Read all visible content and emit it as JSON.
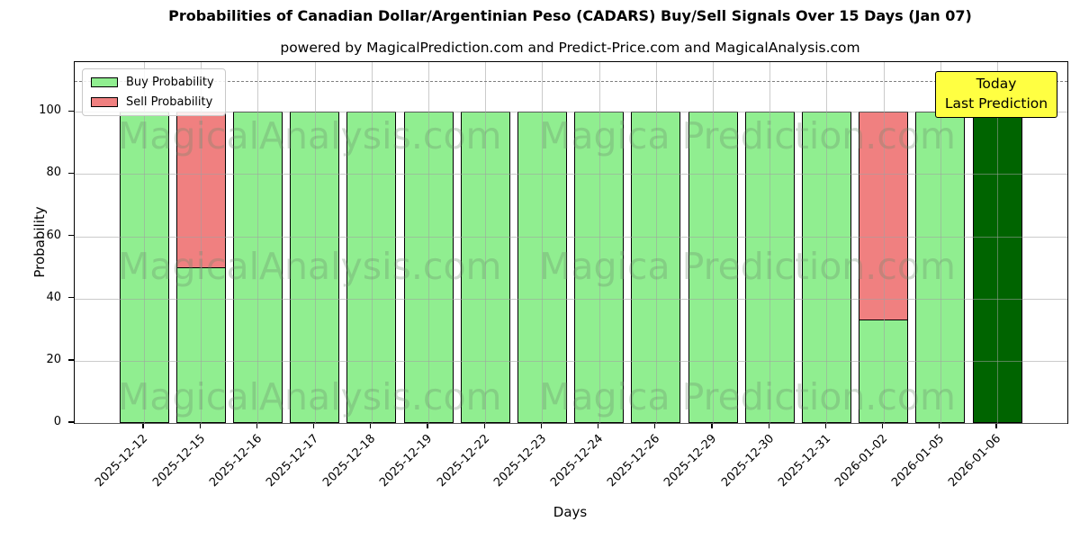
{
  "title": "Probabilities of Canadian Dollar/Argentinian Peso (CADARS) Buy/Sell Signals Over 15 Days (Jan 07)",
  "subtitle": "powered by MagicalPrediction.com and Predict-Price.com and MagicalAnalysis.com",
  "axes": {
    "xlabel": "Days",
    "ylabel": "Probability"
  },
  "legend": {
    "position": "upper left",
    "items": [
      {
        "label": "Buy Probability",
        "color": "#90ee90"
      },
      {
        "label": "Sell Probability",
        "color": "#f08080"
      }
    ]
  },
  "annotation": {
    "line1": "Today",
    "line2": "Last Prediction",
    "bg_color": "#ffff42"
  },
  "watermarks": {
    "left_text": "MagicalAnalysis.com",
    "right_text": "Magica Prediction.com"
  },
  "chart_data": {
    "type": "bar",
    "stacked": true,
    "categories": [
      "2025-12-12",
      "2025-12-15",
      "2025-12-16",
      "2025-12-17",
      "2025-12-18",
      "2025-12-19",
      "2025-12-22",
      "2025-12-23",
      "2025-12-24",
      "2025-12-26",
      "2025-12-29",
      "2025-12-30",
      "2025-12-31",
      "2026-01-02",
      "2026-01-05",
      "2026-01-06"
    ],
    "series": [
      {
        "name": "Buy Probability",
        "color": "#90ee90",
        "values": [
          100,
          50,
          100,
          100,
          100,
          100,
          100,
          100,
          100,
          100,
          100,
          100,
          100,
          33,
          100,
          100
        ]
      },
      {
        "name": "Sell Probability",
        "color": "#f08080",
        "values": [
          0,
          50,
          0,
          0,
          0,
          0,
          0,
          0,
          0,
          0,
          0,
          0,
          0,
          67,
          0,
          0
        ]
      }
    ],
    "today_bar": {
      "index": 15,
      "color": "#006400"
    },
    "xlabel": "Days",
    "ylabel": "Probability",
    "ylim": [
      0,
      116
    ],
    "yticks": [
      0,
      20,
      40,
      60,
      80,
      100
    ],
    "dashed_line_y": 110,
    "grid": true,
    "bar_edge_color": "#000000",
    "background": "#ffffff"
  }
}
